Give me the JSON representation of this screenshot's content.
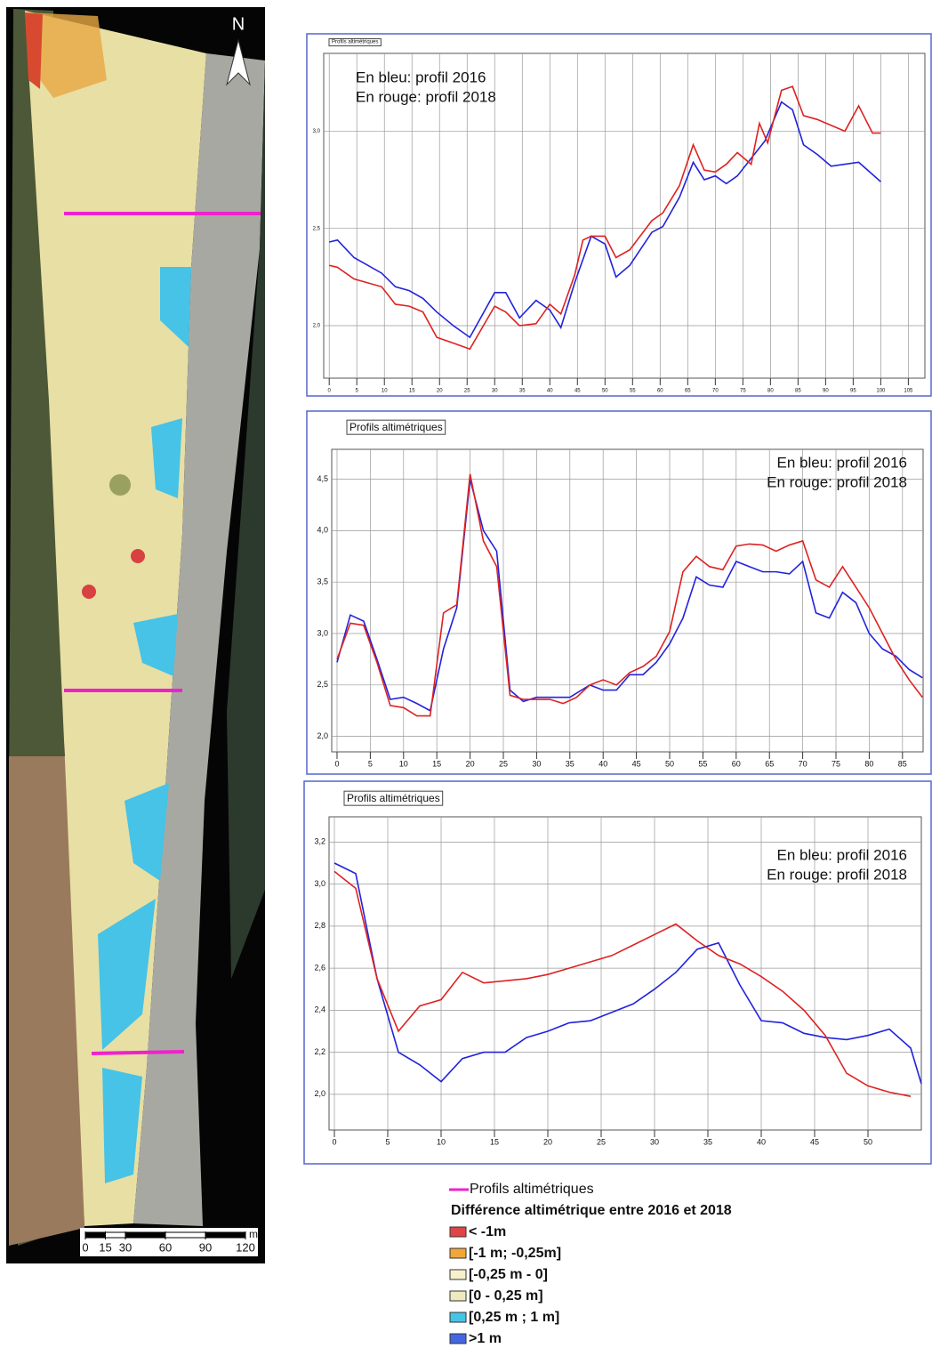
{
  "chart_data": [
    {
      "type": "line",
      "title": "Profils altimétriques",
      "grid": true,
      "xlim": [
        -1,
        108
      ],
      "ylim": [
        1.73,
        3.4
      ],
      "xticks": [
        0,
        5,
        10,
        15,
        20,
        25,
        30,
        35,
        40,
        45,
        50,
        55,
        60,
        65,
        70,
        75,
        80,
        85,
        90,
        95,
        100,
        105
      ],
      "yticks": [
        {
          "value": 2,
          "label": "2,0"
        },
        {
          "value": 2.5,
          "label": "2,5"
        },
        {
          "value": 3,
          "label": "3,0"
        }
      ],
      "series": [
        {
          "name": "En bleu: profil 2016",
          "color": "#2222dd",
          "x": [
            0,
            1.5,
            4.5,
            9.5,
            12,
            14.5,
            17,
            19.5,
            22.5,
            25.5,
            30,
            32,
            34.5,
            37.5,
            40,
            42,
            44.5,
            47.5,
            50,
            52,
            54.5,
            58.5,
            60.5,
            63.5,
            66,
            68,
            70,
            72,
            74,
            76.5,
            79,
            82,
            84,
            86,
            88.5,
            91,
            93.5,
            96,
            100
          ],
          "values": [
            2.43,
            2.44,
            2.35,
            2.27,
            2.2,
            2.18,
            2.14,
            2.07,
            2.0,
            1.94,
            2.17,
            2.17,
            2.04,
            2.13,
            2.08,
            1.99,
            2.22,
            2.46,
            2.42,
            2.25,
            2.31,
            2.48,
            2.51,
            2.66,
            2.84,
            2.75,
            2.77,
            2.73,
            2.77,
            2.86,
            2.95,
            3.15,
            3.11,
            2.93,
            2.88,
            2.82,
            2.83,
            2.84,
            2.74
          ]
        },
        {
          "name": "En rouge: profil 2018",
          "color": "#dd2222",
          "x": [
            0,
            1.5,
            4.5,
            9.5,
            12,
            14.5,
            17,
            19.5,
            22.5,
            25.5,
            30,
            32,
            34.5,
            37.5,
            40,
            42,
            44.5,
            46,
            47.5,
            50,
            52,
            54.5,
            58.5,
            60.5,
            63.5,
            66,
            68,
            70,
            72,
            74,
            76.5,
            78,
            79.5,
            82,
            84,
            86,
            88.5,
            91,
            93.5,
            96,
            98.5,
            100
          ],
          "values": [
            2.31,
            2.3,
            2.24,
            2.2,
            2.11,
            2.1,
            2.07,
            1.94,
            1.91,
            1.88,
            2.1,
            2.07,
            2.0,
            2.01,
            2.11,
            2.06,
            2.26,
            2.44,
            2.46,
            2.46,
            2.35,
            2.39,
            2.54,
            2.58,
            2.72,
            2.93,
            2.8,
            2.79,
            2.83,
            2.89,
            2.83,
            3.04,
            2.94,
            3.21,
            3.23,
            3.08,
            3.06,
            3.03,
            3.0,
            3.13,
            2.99,
            2.99
          ]
        }
      ]
    },
    {
      "type": "line",
      "title": "Profils altimétriques",
      "grid": true,
      "xlim": [
        -0.8,
        88.1
      ],
      "ylim": [
        1.85,
        4.79
      ],
      "xticks": [
        0,
        5,
        10,
        15,
        20,
        25,
        30,
        35,
        40,
        45,
        50,
        55,
        60,
        65,
        70,
        75,
        80,
        85
      ],
      "yticks": [
        {
          "value": 2,
          "label": "2,0"
        },
        {
          "value": 2.5,
          "label": "2,5"
        },
        {
          "value": 3,
          "label": "3,0"
        },
        {
          "value": 3.5,
          "label": "3,5"
        },
        {
          "value": 4,
          "label": "4,0"
        },
        {
          "value": 4.5,
          "label": "4,5"
        }
      ],
      "series": [
        {
          "name": "En bleu: profil 2016",
          "color": "#2222dd",
          "x": [
            0,
            2,
            4,
            6,
            8,
            10,
            12,
            14,
            16,
            18,
            20,
            22,
            24,
            26,
            28,
            30,
            32,
            35,
            38,
            40,
            42,
            44,
            46,
            48,
            50,
            52,
            54,
            56,
            58,
            60,
            62,
            64,
            66,
            68,
            70,
            72,
            74,
            76,
            78,
            80,
            82,
            84,
            86,
            88
          ],
          "values": [
            2.72,
            3.18,
            3.12,
            2.75,
            2.36,
            2.38,
            2.32,
            2.25,
            2.85,
            3.25,
            4.5,
            4.0,
            3.8,
            2.45,
            2.34,
            2.38,
            2.38,
            2.38,
            2.5,
            2.45,
            2.45,
            2.6,
            2.6,
            2.72,
            2.9,
            3.15,
            3.55,
            3.47,
            3.45,
            3.7,
            3.65,
            3.6,
            3.6,
            3.58,
            3.7,
            3.2,
            3.15,
            3.4,
            3.3,
            3.0,
            2.85,
            2.78,
            2.65,
            2.57
          ]
        },
        {
          "name": "En rouge: profil 2018",
          "color": "#dd2222",
          "x": [
            0,
            2,
            4,
            6,
            8,
            10,
            12,
            14,
            16,
            18,
            20,
            22,
            24,
            26,
            28,
            30,
            32,
            34,
            36,
            38,
            40,
            42,
            44,
            46,
            48,
            50,
            52,
            54,
            56,
            58,
            60,
            62,
            64,
            66,
            68,
            70,
            72,
            74,
            76,
            78,
            80,
            82,
            84,
            86,
            88
          ],
          "values": [
            2.75,
            3.1,
            3.08,
            2.72,
            2.3,
            2.28,
            2.2,
            2.2,
            3.2,
            3.28,
            4.55,
            3.9,
            3.65,
            2.4,
            2.36,
            2.36,
            2.36,
            2.32,
            2.38,
            2.5,
            2.55,
            2.5,
            2.62,
            2.68,
            2.78,
            3.02,
            3.6,
            3.75,
            3.65,
            3.62,
            3.85,
            3.87,
            3.86,
            3.8,
            3.86,
            3.9,
            3.52,
            3.45,
            3.65,
            3.45,
            3.25,
            3.0,
            2.75,
            2.55,
            2.38
          ]
        }
      ]
    },
    {
      "type": "line",
      "title": "Profils altimétriques",
      "grid": true,
      "xlim": [
        -0.5,
        55
      ],
      "ylim": [
        1.83,
        3.32
      ],
      "xticks": [
        0,
        5,
        10,
        15,
        20,
        25,
        30,
        35,
        40,
        45,
        50
      ],
      "yticks": [
        {
          "value": 2,
          "label": "2,0"
        },
        {
          "value": 2.2,
          "label": "2,2"
        },
        {
          "value": 2.4,
          "label": "2,4"
        },
        {
          "value": 2.6,
          "label": "2,6"
        },
        {
          "value": 2.8,
          "label": "2,8"
        },
        {
          "value": 3,
          "label": "3,0"
        },
        {
          "value": 3.2,
          "label": "3,2"
        }
      ],
      "series": [
        {
          "name": "En bleu: profil 2016",
          "color": "#2222dd",
          "x": [
            0,
            2,
            4,
            6,
            8,
            10,
            12,
            14,
            16,
            18,
            20,
            22,
            24,
            26,
            28,
            30,
            32,
            34,
            36,
            38,
            40,
            42,
            44,
            46,
            48,
            50,
            52,
            54,
            55
          ],
          "values": [
            3.1,
            3.05,
            2.55,
            2.2,
            2.14,
            2.06,
            2.17,
            2.2,
            2.2,
            2.27,
            2.3,
            2.34,
            2.35,
            2.39,
            2.43,
            2.5,
            2.58,
            2.69,
            2.72,
            2.52,
            2.35,
            2.34,
            2.29,
            2.27,
            2.26,
            2.28,
            2.31,
            2.22,
            2.05
          ]
        },
        {
          "name": "En rouge: profil 2018",
          "color": "#dd2222",
          "x": [
            0,
            2,
            4,
            6,
            8,
            10,
            12,
            14,
            16,
            18,
            20,
            22,
            24,
            26,
            28,
            30,
            32,
            34,
            36,
            38,
            40,
            42,
            44,
            46,
            48,
            50,
            52,
            54
          ],
          "values": [
            3.06,
            2.98,
            2.55,
            2.3,
            2.42,
            2.45,
            2.58,
            2.53,
            2.54,
            2.55,
            2.57,
            2.6,
            2.63,
            2.66,
            2.71,
            2.76,
            2.81,
            2.73,
            2.66,
            2.62,
            2.56,
            2.49,
            2.4,
            2.28,
            2.1,
            2.04,
            2.01,
            1.99
          ]
        }
      ]
    }
  ],
  "map": {
    "north": "N",
    "scale_ticks": [
      0,
      15,
      30,
      60,
      90,
      120
    ],
    "scale_unit": "m"
  },
  "legend": {
    "profiles": "Profils altimétriques",
    "profiles_color": "#ee22cc",
    "title": "Différence altimétrique entre 2016 et 2018",
    "classes": [
      {
        "label": "< -1m",
        "color": "#e04444"
      },
      {
        "label": "[-1 m; -0,25m]",
        "color": "#f0a638"
      },
      {
        "label": "[-0,25 m - 0]",
        "color": "#f6f0cc"
      },
      {
        "label": "[0 - 0,25 m]",
        "color": "#efe9bf"
      },
      {
        "label": "[0,25 m ; 1 m]",
        "color": "#44c4e6"
      },
      {
        "label": ">1 m",
        "color": "#4466e0"
      }
    ]
  }
}
